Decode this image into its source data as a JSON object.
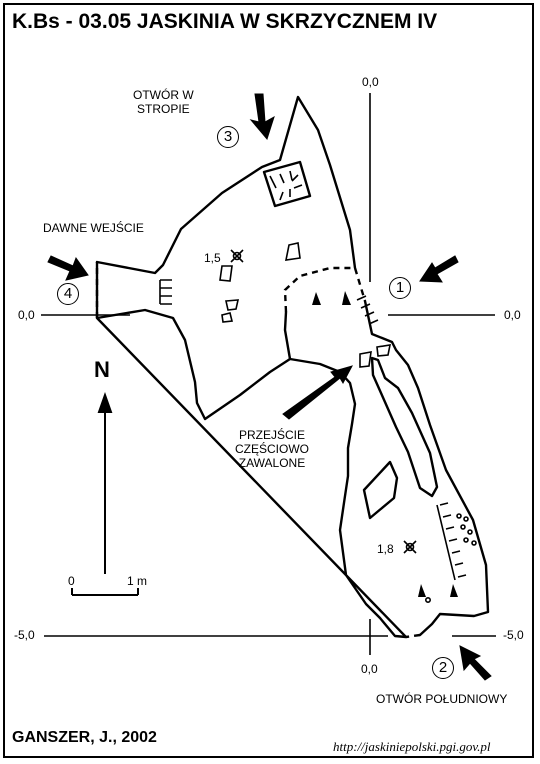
{
  "title": "K.Bs - 03.05  JASKINIA W SKRZYCZNEM IV",
  "author": "GANSZER, J., 2002",
  "source_url": "http://jaskiniepolski.pgi.gov.pl",
  "labels": {
    "otwor_w_stropie": [
      "OTWÓR W",
      "STROPIE"
    ],
    "dawne_wejscie": "DAWNE WEJŚCIE",
    "przejscie": [
      "PRZEJŚCIE",
      "CZĘŚCIOWO",
      "ZAWALONE"
    ],
    "otwor_poludniowy": "OTWÓR POŁUDNIOWY"
  },
  "markers": [
    "1",
    "2",
    "3",
    "4"
  ],
  "coordinates": {
    "top": "0,0",
    "left": "0,0",
    "right": "0,0",
    "bottom_left": "-5,0",
    "bottom_right": "-5,0",
    "bottom_center": "0,0"
  },
  "north": "N",
  "scale": {
    "start": "0",
    "end": "1 m"
  },
  "depths": [
    "1,5",
    "1,8"
  ]
}
